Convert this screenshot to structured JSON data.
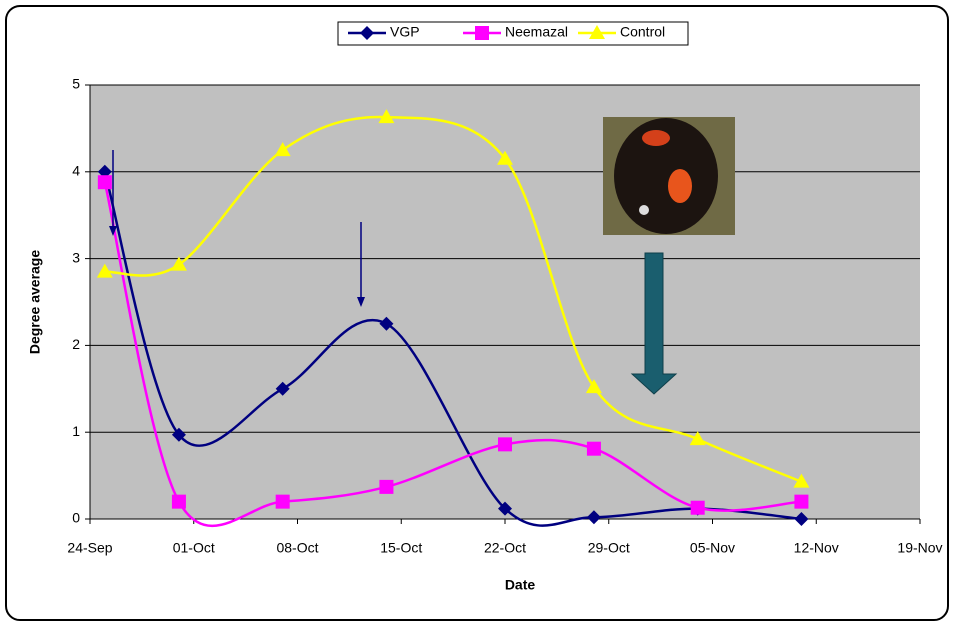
{
  "chart_data": {
    "type": "line",
    "x_label": "Date",
    "y_label": "Degree average",
    "x": [
      1,
      6,
      13,
      20,
      28,
      34,
      41,
      48
    ],
    "xlim": [
      0,
      56
    ],
    "xticks": [
      {
        "value": 0,
        "label": "24-Sep"
      },
      {
        "value": 7,
        "label": "01-Oct"
      },
      {
        "value": 14,
        "label": "08-Oct"
      },
      {
        "value": 21,
        "label": "15-Oct"
      },
      {
        "value": 28,
        "label": "22-Oct"
      },
      {
        "value": 35,
        "label": "29-Oct"
      },
      {
        "value": 42,
        "label": "05-Nov"
      },
      {
        "value": 49,
        "label": "12-Nov"
      },
      {
        "value": 56,
        "label": "19-Nov"
      }
    ],
    "ylim": [
      0,
      5
    ],
    "yticks": [
      0,
      1,
      2,
      3,
      4,
      5
    ],
    "grid": true,
    "legend": "top",
    "series": [
      {
        "name": "VGP",
        "color": "#000080",
        "marker": "diamond",
        "values": [
          4.0,
          0.97,
          1.5,
          2.25,
          0.12,
          0.02,
          0.12,
          0.0
        ]
      },
      {
        "name": "Neemazal",
        "color": "#ff00ff",
        "marker": "square",
        "values": [
          3.88,
          0.2,
          0.2,
          0.37,
          0.86,
          0.81,
          0.13,
          0.2
        ]
      },
      {
        "name": "Control",
        "color": "#ffff00",
        "marker": "triangle",
        "values": [
          2.85,
          2.93,
          4.25,
          4.63,
          4.15,
          1.52,
          0.92,
          0.43
        ]
      }
    ]
  }
}
